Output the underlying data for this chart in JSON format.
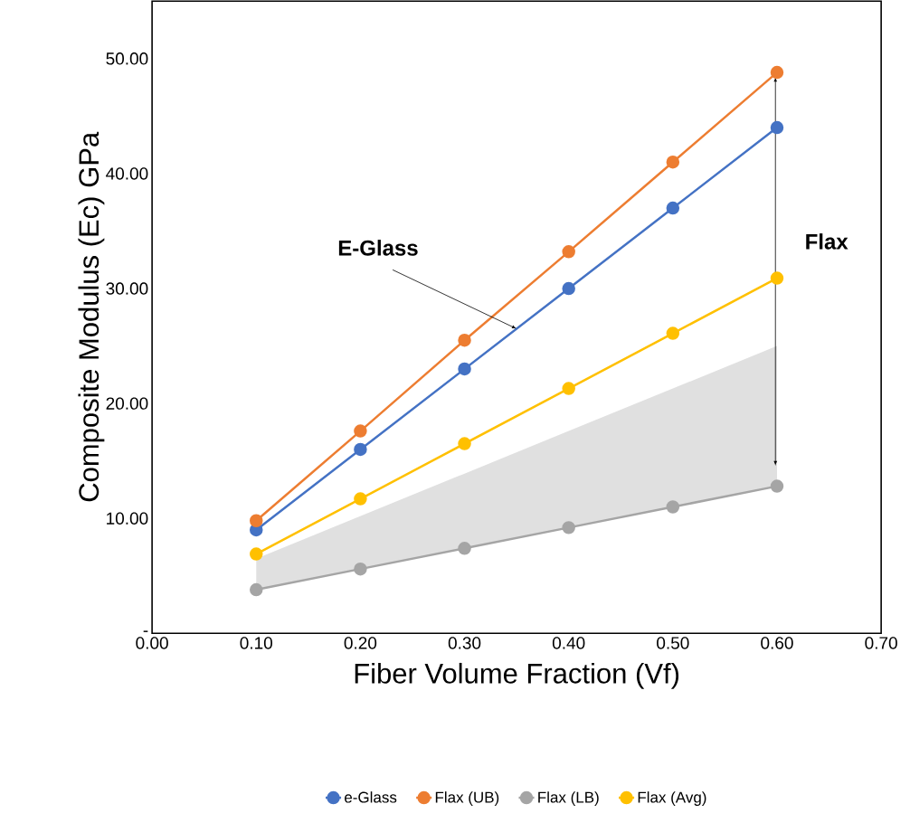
{
  "chart_data": {
    "type": "line",
    "xlabel": "Fiber Volume Fraction (Vf)",
    "ylabel": "Composite Modulus (Ec) GPa",
    "x": [
      0.1,
      0.2,
      0.3,
      0.4,
      0.5,
      0.6
    ],
    "series": [
      {
        "name": "e-Glass",
        "color": "#4472c4",
        "values": [
          9,
          16,
          23,
          30,
          37,
          44
        ]
      },
      {
        "name": "Flax (UB)",
        "color": "#ed7d31",
        "values": [
          9.8,
          17.6,
          25.5,
          33.2,
          41,
          48.8
        ]
      },
      {
        "name": "Flax (LB)",
        "color": "#a5a5a5",
        "values": [
          3.8,
          5.6,
          7.4,
          9.2,
          11,
          12.8
        ],
        "lower": [
          3.8,
          5.6,
          7.4,
          9.2,
          11,
          12.8
        ],
        "upper": [
          6.5,
          10.2,
          13.9,
          17.6,
          21.3,
          25
        ]
      },
      {
        "name": "Flax (Avg)",
        "color": "#ffc000",
        "values": [
          6.9,
          11.7,
          16.5,
          21.3,
          26.1,
          30.9
        ]
      }
    ],
    "xlim": [
      0,
      0.7
    ],
    "xticks": [
      {
        "value": 0,
        "label": "0.00"
      },
      {
        "value": 0.1,
        "label": "0.10"
      },
      {
        "value": 0.2,
        "label": "0.20"
      },
      {
        "value": 0.3,
        "label": "0.30"
      },
      {
        "value": 0.4,
        "label": "0.40"
      },
      {
        "value": 0.5,
        "label": "0.50"
      },
      {
        "value": 0.6,
        "label": "0.60"
      },
      {
        "value": 0.7,
        "label": "0.70"
      }
    ],
    "ylim": [
      0,
      55
    ],
    "yticks": [
      {
        "value": 0,
        "label": "-"
      },
      {
        "value": 10,
        "label": "10.00"
      },
      {
        "value": 20,
        "label": "20.00"
      },
      {
        "value": 30,
        "label": "30.00"
      },
      {
        "value": 40,
        "label": "40.00"
      },
      {
        "value": 50,
        "label": "50.00"
      }
    ],
    "annotations": [
      {
        "text": "E-Glass",
        "x": 0.35,
        "y": 26.5
      },
      "Flax"
    ],
    "grid": false,
    "legend": "bottom",
    "marker": "circle",
    "line_style": "solid"
  }
}
